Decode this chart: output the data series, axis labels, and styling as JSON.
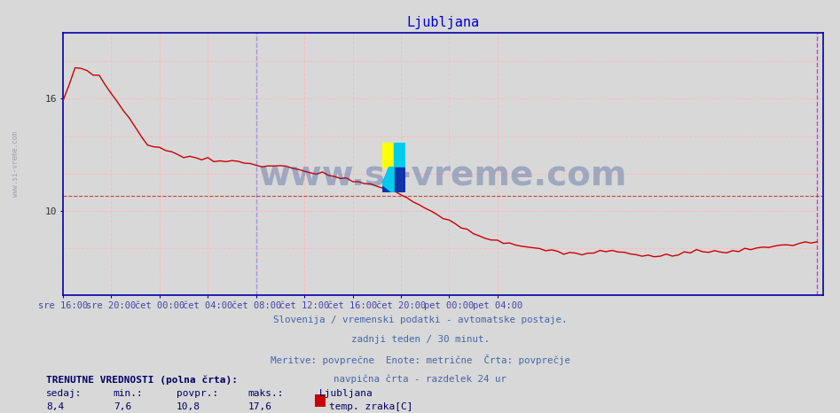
{
  "title": "Ljubljana",
  "title_color": "#0000cc",
  "bg_color": "#d8d8d8",
  "plot_bg_color": "#d8d8d8",
  "line_color": "#cc0000",
  "line_width": 1.0,
  "yticks": [
    10,
    16
  ],
  "ylim": [
    5.5,
    19.5
  ],
  "xlim_min": 0,
  "xlim_max": 126,
  "grid_color": "#ffaaaa",
  "avg_line_y": 10.8,
  "xtick_positions": [
    0,
    8,
    16,
    24,
    32,
    40,
    48,
    56,
    64,
    72
  ],
  "xtick_labels": [
    "sre 16:00",
    "sre 20:00",
    "čet 00:00",
    "čet 04:00",
    "čet 08:00",
    "čet 12:00",
    "čet 16:00",
    "čet 20:00",
    "pet 00:00",
    "pet 04:00"
  ],
  "vline_blue_x": 32,
  "vline_magenta_x": 125,
  "subtitle_lines": [
    "Slovenija / vremenski podatki - avtomatske postaje.",
    "zadnji teden / 30 minut.",
    "Meritve: povprečne  Enote: metrične  Črta: povprečje",
    "navpična črta - razdelek 24 ur"
  ],
  "subtitle_color": "#4466aa",
  "footer_bold": "TRENUTNE VREDNOSTI (polna črta):",
  "footer_labels": [
    "sedaj:",
    "min.:",
    "povpr.:",
    "maks.:"
  ],
  "footer_values": [
    "8,4",
    "7,6",
    "10,8",
    "17,6"
  ],
  "footer_legend_label": "Ljubljana",
  "footer_series_label": "temp. zraka[C]",
  "footer_series_color": "#cc0000",
  "watermark_text": "www.si-vreme.com",
  "watermark_color": "#1a3a8a",
  "watermark_alpha": 0.3,
  "left_watermark": "www.si-vreme.com"
}
